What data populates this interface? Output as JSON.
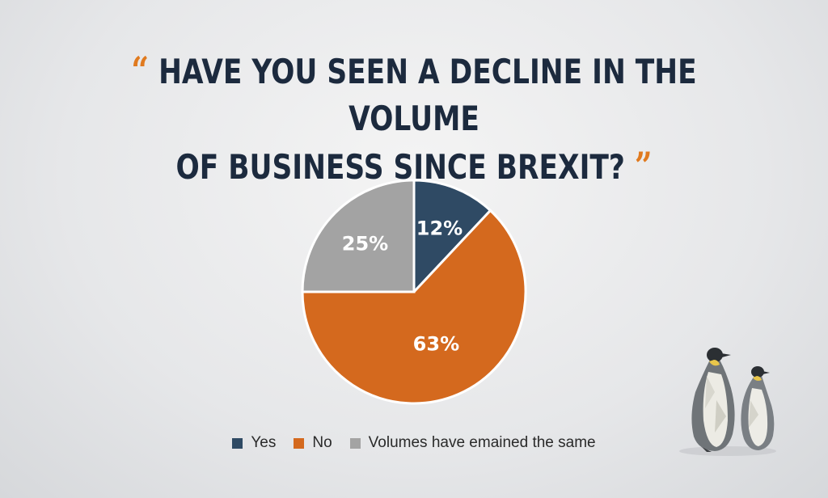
{
  "title": {
    "open_quote": "“",
    "line1": "HAVE YOU SEEN A DECLINE IN THE VOLUME",
    "line2": "OF BUSINESS SINCE BREXIT?",
    "close_quote": "”"
  },
  "chart_data": {
    "type": "pie",
    "slices": [
      {
        "label": "Yes",
        "value": 12,
        "display": "12%",
        "color": "#2f4a64"
      },
      {
        "label": "No",
        "value": 63,
        "display": "63%",
        "color": "#d4691e"
      },
      {
        "label": "Volumes have emained the same",
        "value": 25,
        "display": "25%",
        "color": "#a3a3a3"
      }
    ],
    "legend_placement": "bottom"
  },
  "decoration": {
    "icon": "penguins-illustration"
  }
}
